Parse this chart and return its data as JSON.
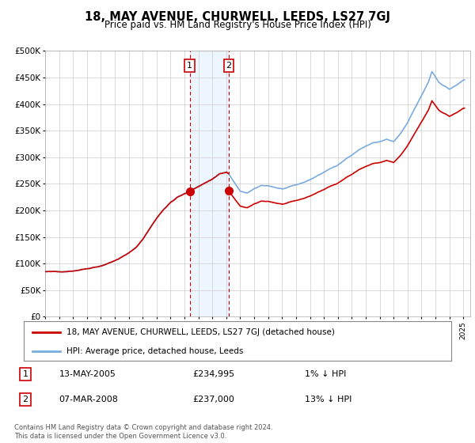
{
  "title": "18, MAY AVENUE, CHURWELL, LEEDS, LS27 7GJ",
  "subtitle": "Price paid vs. HM Land Registry's House Price Index (HPI)",
  "legend_label_red": "18, MAY AVENUE, CHURWELL, LEEDS, LS27 7GJ (detached house)",
  "legend_label_blue": "HPI: Average price, detached house, Leeds",
  "footer": "Contains HM Land Registry data © Crown copyright and database right 2024.\nThis data is licensed under the Open Government Licence v3.0.",
  "transaction1_date": "13-MAY-2005",
  "transaction1_price": 234995,
  "transaction1_note": "1% ↓ HPI",
  "transaction2_date": "07-MAR-2008",
  "transaction2_price": 237000,
  "transaction2_note": "13% ↓ HPI",
  "color_red": "#cc0000",
  "color_blue": "#7aabde",
  "color_vline": "#cc0000",
  "color_bg_shade": "#ddeeff",
  "ylim_min": 0,
  "ylim_max": 500000,
  "ytick_step": 50000,
  "sale1_year_num": 2005.37,
  "sale2_year_num": 2008.17,
  "sale1_price": 234995,
  "sale2_price": 237000
}
